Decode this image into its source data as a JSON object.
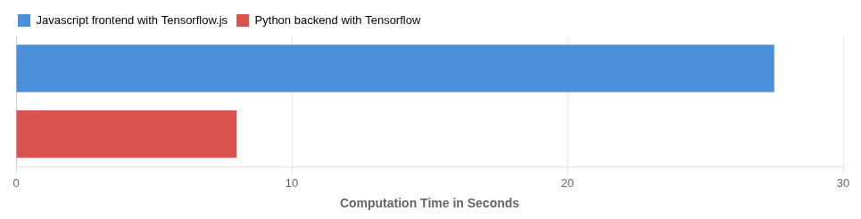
{
  "chart_data": {
    "type": "bar",
    "orientation": "horizontal",
    "categories": [
      "Javascript frontend with Tensorflow.js",
      "Python backend with Tensorflow"
    ],
    "values": [
      27.5,
      8.0
    ],
    "colors": [
      "#4A90D9",
      "#D9534F"
    ],
    "xlabel": "Computation Time in Seconds",
    "xlim": [
      0,
      30
    ],
    "xticks": [
      0,
      10,
      20,
      30
    ],
    "grid": true,
    "legend": "upper left",
    "tick_labels": "x"
  }
}
